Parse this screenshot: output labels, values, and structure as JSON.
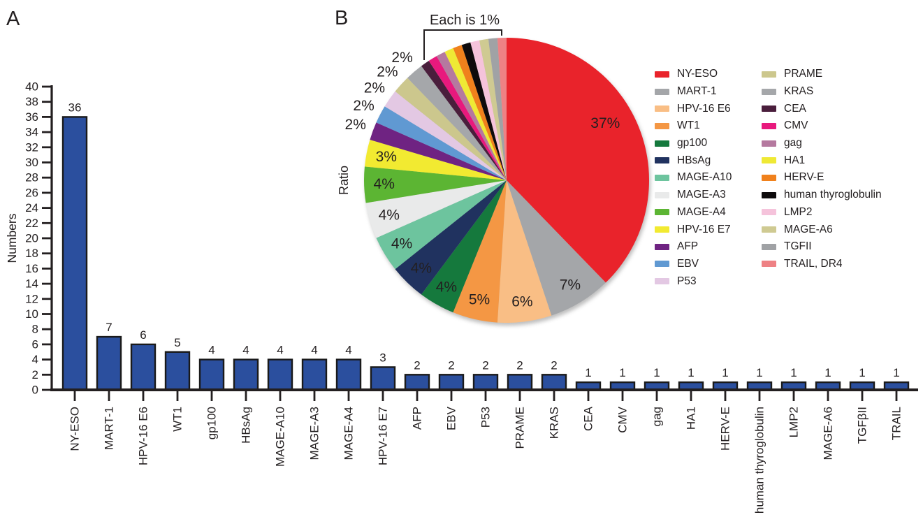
{
  "panels": {
    "a": "A",
    "b": "B"
  },
  "chart_data": [
    {
      "id": "antigen-target-counts",
      "type": "bar",
      "title": "",
      "xlabel": "",
      "ylabel": "Numbers",
      "ylim": [
        0,
        40
      ],
      "ytick_step": 2,
      "grid": false,
      "bar_color": "#2B4F9E",
      "bar_edge_color": "#1A1A1A",
      "categories": [
        "NY-ESO",
        "MART-1",
        "HPV-16 E6",
        "WT1",
        "gp100",
        "HBsAg",
        "MAGE-A10",
        "MAGE-A3",
        "MAGE-A4",
        "HPV-16 E7",
        "AFP",
        "EBV",
        "P53",
        "PRAME",
        "KRAS",
        "CEA",
        "CMV",
        "gag",
        "HA1",
        "HERV-E",
        "human thyroglobulin",
        "LMP2",
        "MAGE-A6",
        "TGFβII",
        "TRAIL"
      ],
      "values": [
        36,
        7,
        6,
        5,
        4,
        4,
        4,
        4,
        4,
        3,
        2,
        2,
        2,
        2,
        2,
        1,
        1,
        1,
        1,
        1,
        1,
        1,
        1,
        1,
        1
      ]
    },
    {
      "id": "antigen-target-ratio",
      "type": "pie",
      "side_label": "Ratio",
      "bracket_annotation": "Each is 1%",
      "legend_position": "right",
      "slices": [
        {
          "label": "NY-ESO",
          "value": 37,
          "display": "37%",
          "color": "#E9232B"
        },
        {
          "label": "MART-1",
          "value": 7,
          "display": "7%",
          "color": "#A4A6A9"
        },
        {
          "label": "HPV-16 E6",
          "value": 6,
          "display": "6%",
          "color": "#F9BE85"
        },
        {
          "label": "WT1",
          "value": 5,
          "display": "5%",
          "color": "#F49744"
        },
        {
          "label": "gp100",
          "value": 4,
          "display": "4%",
          "color": "#15793D"
        },
        {
          "label": "HBsAg",
          "value": 4,
          "display": "4%",
          "color": "#20325F"
        },
        {
          "label": "MAGE-A10",
          "value": 4,
          "display": "4%",
          "color": "#6DC49E"
        },
        {
          "label": "MAGE-A3",
          "value": 4,
          "display": "4%",
          "color": "#E9EAEA"
        },
        {
          "label": "MAGE-A4",
          "value": 4,
          "display": "4%",
          "color": "#5CB533"
        },
        {
          "label": "HPV-16 E7",
          "value": 3,
          "display": "3%",
          "color": "#F2EA31"
        },
        {
          "label": "AFP",
          "value": 2,
          "display": "2%",
          "color": "#6F2382"
        },
        {
          "label": "EBV",
          "value": 2,
          "display": "2%",
          "color": "#6099D2"
        },
        {
          "label": "P53",
          "value": 2,
          "display": "2%",
          "color": "#E3C8E3"
        },
        {
          "label": "PRAME",
          "value": 2,
          "display": "2%",
          "color": "#CCC78D"
        },
        {
          "label": "KRAS",
          "value": 2,
          "display": "2%",
          "color": "#A5A7AA"
        },
        {
          "label": "CEA",
          "value": 1,
          "display": "",
          "color": "#4A1E3C"
        },
        {
          "label": "CMV",
          "value": 1,
          "display": "",
          "color": "#E8197D"
        },
        {
          "label": "gag",
          "value": 1,
          "display": "",
          "color": "#B5799F"
        },
        {
          "label": "HA1",
          "value": 1,
          "display": "",
          "color": "#EFE935"
        },
        {
          "label": "HERV-E",
          "value": 1,
          "display": "",
          "color": "#F0811C"
        },
        {
          "label": "human thyroglobulin",
          "value": 1,
          "display": "",
          "color": "#0E0B0C"
        },
        {
          "label": "LMP2",
          "value": 1,
          "display": "",
          "color": "#F5C3DB"
        },
        {
          "label": "MAGE-A6",
          "value": 1,
          "display": "",
          "color": "#CFCA92"
        },
        {
          "label": "TGFII",
          "value": 1,
          "display": "",
          "color": "#A0A2A5"
        },
        {
          "label": "TRAIL, DR4",
          "value": 1,
          "display": "",
          "color": "#EE8184"
        }
      ]
    }
  ],
  "legend": {
    "columns": [
      [
        {
          "label": "NY-ESO",
          "color": "#E9232B"
        },
        {
          "label": "MART-1",
          "color": "#A4A6A9"
        },
        {
          "label": "HPV-16 E6",
          "color": "#F9BE85"
        },
        {
          "label": "WT1",
          "color": "#F49744"
        },
        {
          "label": "gp100",
          "color": "#15793D"
        },
        {
          "label": "HBsAg",
          "color": "#20325F"
        },
        {
          "label": "MAGE-A10",
          "color": "#6DC49E"
        },
        {
          "label": "MAGE-A3",
          "color": "#E9EAEA"
        },
        {
          "label": "MAGE-A4",
          "color": "#5CB533"
        },
        {
          "label": "HPV-16 E7",
          "color": "#F2EA31"
        },
        {
          "label": "AFP",
          "color": "#6F2382"
        },
        {
          "label": "EBV",
          "color": "#6099D2"
        },
        {
          "label": "P53",
          "color": "#E3C8E3"
        }
      ],
      [
        {
          "label": "PRAME",
          "color": "#CCC78D"
        },
        {
          "label": "KRAS",
          "color": "#A5A7AA"
        },
        {
          "label": "CEA",
          "color": "#4A1E3C"
        },
        {
          "label": "CMV",
          "color": "#E8197D"
        },
        {
          "label": "gag",
          "color": "#B5799F"
        },
        {
          "label": "HA1",
          "color": "#EFE935"
        },
        {
          "label": "HERV-E",
          "color": "#F0811C"
        },
        {
          "label": "human thyroglobulin",
          "color": "#0E0B0C"
        },
        {
          "label": "LMP2",
          "color": "#F5C3DB"
        },
        {
          "label": "MAGE-A6",
          "color": "#CFCA92"
        },
        {
          "label": "TGFII",
          "color": "#A0A2A5"
        },
        {
          "label": "TRAIL, DR4",
          "color": "#EE8184"
        }
      ]
    ]
  }
}
